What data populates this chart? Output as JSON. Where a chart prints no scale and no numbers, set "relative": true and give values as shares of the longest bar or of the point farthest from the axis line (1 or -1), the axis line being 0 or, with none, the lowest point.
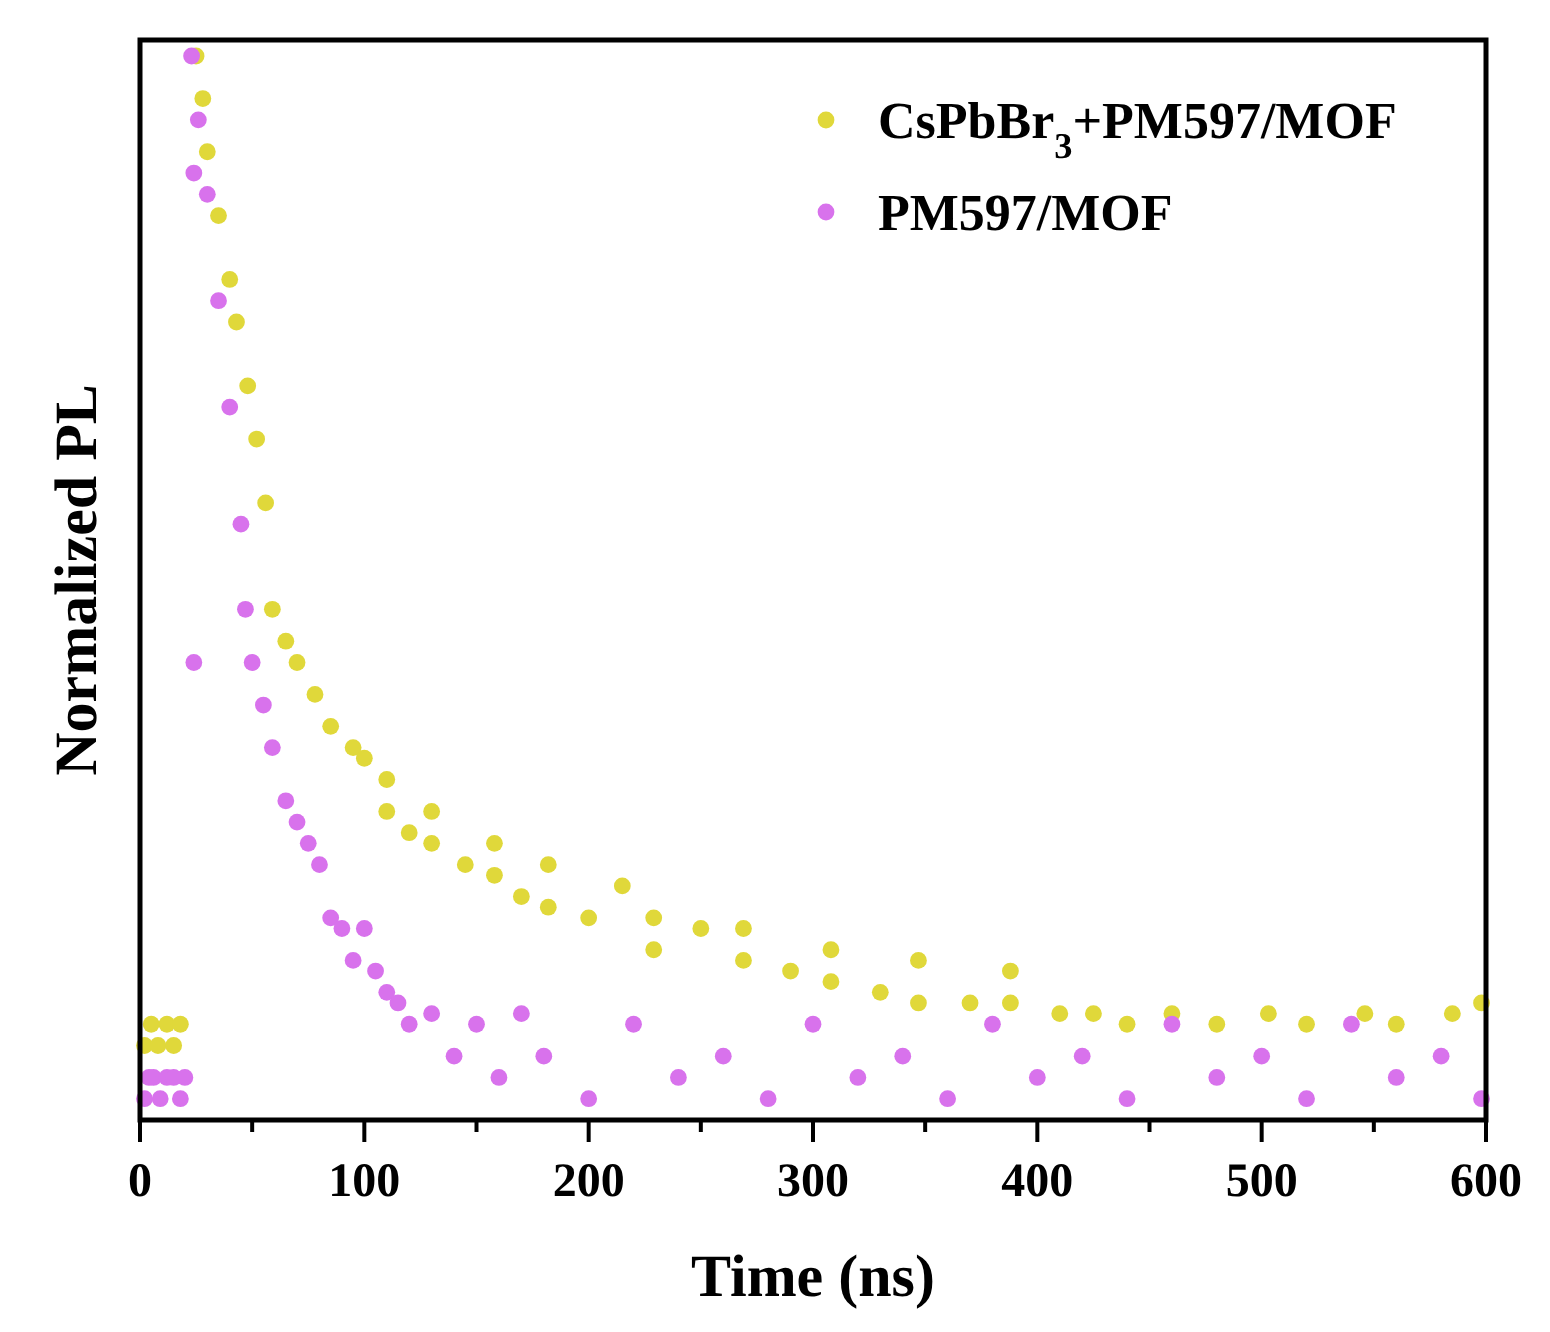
{
  "chart_data": {
    "type": "scatter",
    "xlabel": "Time (ns)",
    "ylabel": "Normalized PL",
    "relative": true,
    "marker": "circle",
    "legend": "top right",
    "xlim": [
      0,
      600
    ],
    "xticks": [
      0,
      {
        "value": 50,
        "label": null
      },
      100,
      {
        "value": 150,
        "label": null
      },
      200,
      {
        "value": 250,
        "label": null
      },
      300,
      {
        "value": 350,
        "label": null
      },
      400,
      {
        "value": 450,
        "label": null
      },
      500,
      {
        "value": 550,
        "label": null
      },
      600
    ],
    "series": [
      {
        "name": "CsPbBr$_{3}$+PM597/MOF",
        "color": "#e0d83a",
        "x": [
          2,
          5,
          8,
          12,
          15,
          18,
          25,
          28,
          30,
          35,
          40,
          43,
          48,
          52,
          56,
          59,
          65,
          70,
          78,
          85,
          95,
          100,
          110,
          110,
          120,
          130,
          130,
          145,
          158,
          158,
          170,
          182,
          182,
          200,
          215,
          229,
          229,
          250,
          269,
          269,
          290,
          308,
          308,
          330,
          347,
          347,
          370,
          388,
          388,
          410,
          425,
          440,
          460,
          480,
          503,
          520,
          546,
          560,
          585,
          598
        ],
        "values": [
          0.07,
          0.09,
          0.07,
          0.09,
          0.07,
          0.09,
          1,
          0.96,
          0.91,
          0.85,
          0.79,
          0.75,
          0.69,
          0.64,
          0.58,
          0.48,
          0.45,
          0.43,
          0.4,
          0.37,
          0.35,
          0.34,
          0.29,
          0.32,
          0.27,
          0.26,
          0.29,
          0.24,
          0.23,
          0.26,
          0.21,
          0.2,
          0.24,
          0.19,
          0.22,
          0.16,
          0.19,
          0.18,
          0.15,
          0.18,
          0.14,
          0.13,
          0.16,
          0.12,
          0.11,
          0.15,
          0.11,
          0.11,
          0.14,
          0.1,
          0.1,
          0.09,
          0.1,
          0.09,
          0.1,
          0.09,
          0.1,
          0.09,
          0.1,
          0.11
        ]
      },
      {
        "name": "PM597/MOF",
        "color": "#d872ec",
        "x": [
          2,
          4,
          6,
          9,
          12,
          15,
          18,
          20,
          24,
          24,
          23,
          26,
          30,
          35,
          40,
          45,
          47,
          50,
          55,
          59,
          65,
          70,
          75,
          80,
          85,
          90,
          95,
          100,
          105,
          110,
          115,
          120,
          130,
          140,
          150,
          160,
          170,
          180,
          200,
          220,
          240,
          260,
          280,
          300,
          320,
          340,
          360,
          380,
          400,
          420,
          440,
          460,
          480,
          500,
          520,
          540,
          560,
          580,
          598
        ],
        "values": [
          0.02,
          0.04,
          0.04,
          0.02,
          0.04,
          0.04,
          0.02,
          0.04,
          0.89,
          0.43,
          1,
          0.94,
          0.87,
          0.77,
          0.67,
          0.56,
          0.48,
          0.43,
          0.39,
          0.35,
          0.3,
          0.28,
          0.26,
          0.24,
          0.19,
          0.18,
          0.15,
          0.18,
          0.14,
          0.12,
          0.11,
          0.09,
          0.1,
          0.06,
          0.09,
          0.04,
          0.1,
          0.06,
          0.02,
          0.09,
          0.04,
          0.06,
          0.02,
          0.09,
          0.04,
          0.06,
          0.02,
          0.09,
          0.04,
          0.06,
          0.02,
          0.09,
          0.04,
          0.06,
          0.02,
          0.09,
          0.04,
          0.06,
          0.02
        ]
      }
    ]
  }
}
